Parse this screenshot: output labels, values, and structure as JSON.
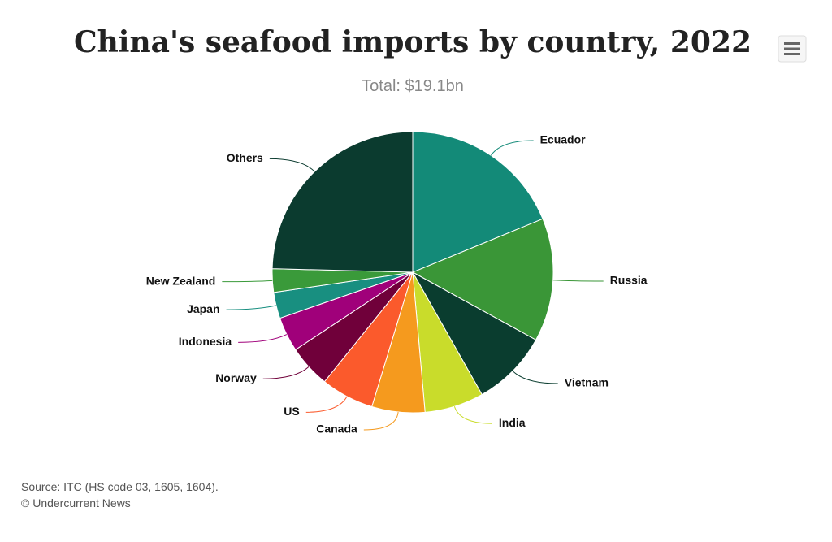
{
  "chart_data": {
    "type": "pie",
    "title": "China's seafood imports by country, 2022",
    "subtitle": "Total: $19.1bn",
    "categories": [
      "Ecuador",
      "Russia",
      "Vietnam",
      "India",
      "Canada",
      "US",
      "Norway",
      "Indonesia",
      "Japan",
      "New Zealand",
      "Others"
    ],
    "values": [
      18.8,
      14.2,
      8.8,
      6.8,
      6.1,
      6.1,
      4.9,
      4.0,
      3.0,
      2.7,
      24.6
    ],
    "colors": [
      "#138a78",
      "#3a9637",
      "#0a3d2f",
      "#c9dc2b",
      "#f59a1e",
      "#fb5a2c",
      "#70003a",
      "#a0007a",
      "#188f80",
      "#3a9a3a",
      "#0b3b2f"
    ],
    "credits": [
      "Source: ITC (HS code 03, 1605, 1604).",
      "© Undercurrent News"
    ]
  }
}
